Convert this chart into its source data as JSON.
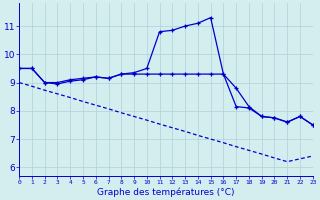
{
  "hours": [
    0,
    1,
    2,
    3,
    4,
    5,
    6,
    7,
    8,
    9,
    10,
    11,
    12,
    13,
    14,
    15,
    16,
    17,
    18,
    19,
    20,
    21,
    22,
    23
  ],
  "line1": [
    9.5,
    9.5,
    9.0,
    9.0,
    9.1,
    9.15,
    9.2,
    9.15,
    9.3,
    9.35,
    9.5,
    10.8,
    10.85,
    11.0,
    11.1,
    11.3,
    9.3,
    8.8,
    8.15,
    7.8,
    7.75,
    7.6,
    7.8,
    7.5
  ],
  "line2": [
    9.5,
    9.5,
    9.0,
    8.95,
    9.05,
    9.1,
    9.2,
    9.15,
    9.3,
    9.3,
    9.3,
    9.3,
    9.3,
    9.3,
    9.3,
    9.3,
    9.3,
    8.15,
    8.1,
    7.8,
    7.75,
    7.6,
    7.8,
    7.5
  ],
  "line3": [
    9.0,
    8.87,
    8.73,
    8.6,
    8.47,
    8.33,
    8.2,
    8.07,
    7.93,
    7.8,
    7.67,
    7.53,
    7.4,
    7.27,
    7.13,
    7.0,
    6.87,
    6.73,
    6.6,
    6.47,
    6.33,
    6.2,
    6.3,
    6.4
  ],
  "line_color": "#0000cc",
  "bg_color": "#d4eef0",
  "grid_color": "#b0d0d8",
  "xlabel": "Graphe des températures (°C)",
  "ylabel_ticks": [
    6,
    7,
    8,
    9,
    10,
    11
  ],
  "ylim": [
    5.7,
    11.8
  ],
  "xlim": [
    0,
    23
  ],
  "marker": "+"
}
